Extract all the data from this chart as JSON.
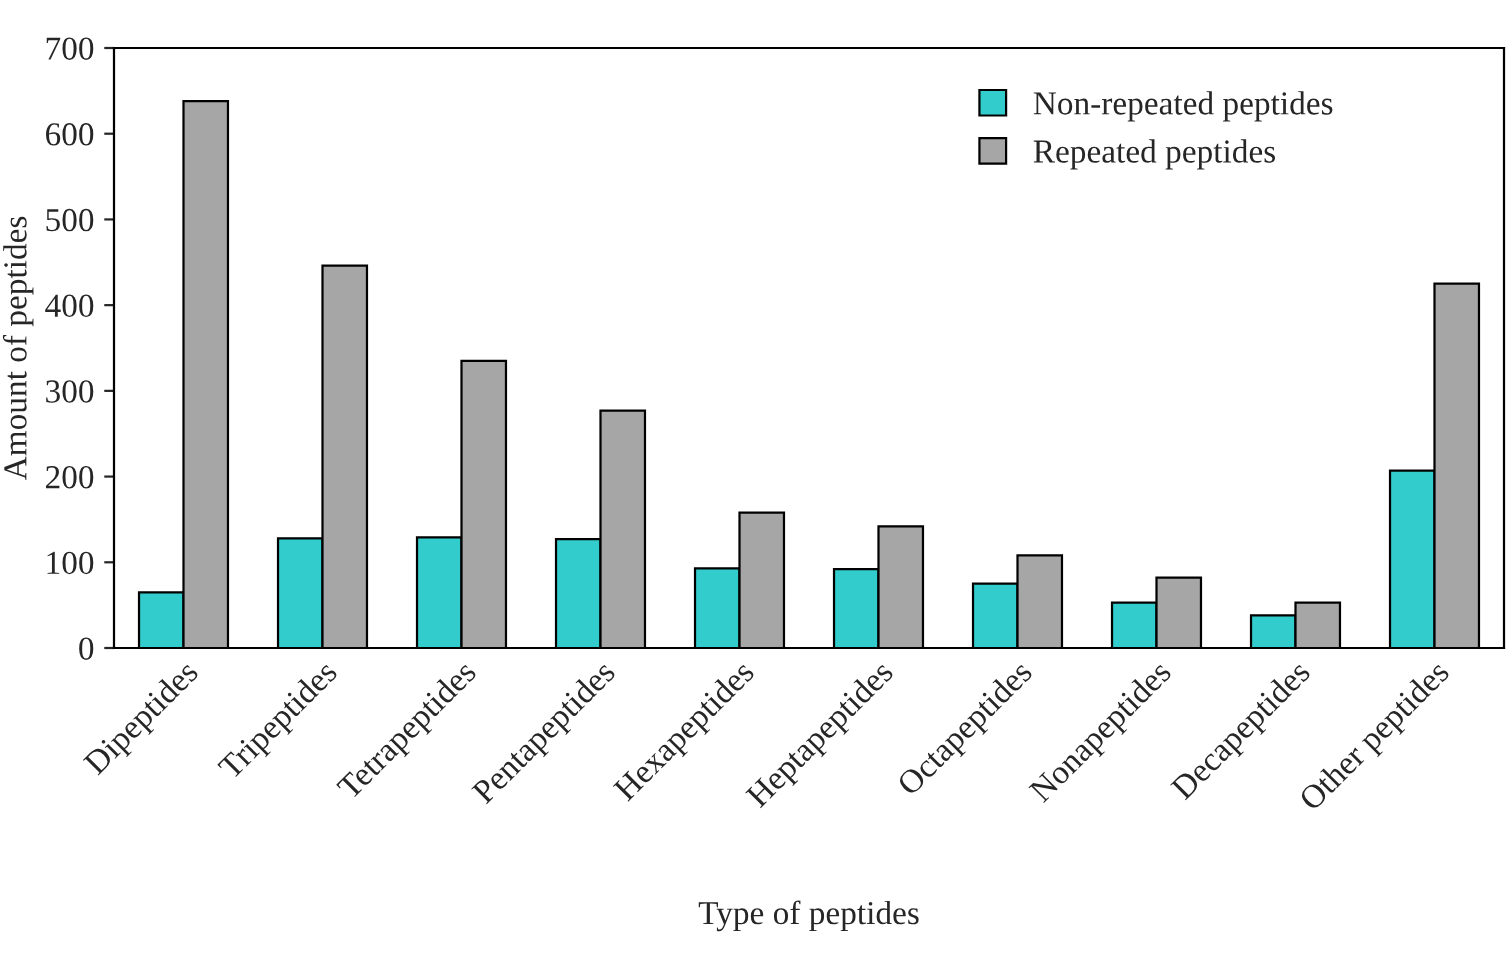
{
  "chart_data": {
    "type": "bar",
    "xlabel": "Type of peptides",
    "ylabel": "Amount of peptides",
    "categories": [
      "Dipeptides",
      "Tripeptides",
      "Tetrapeptides",
      "Pentapeptides",
      "Hexapeptides",
      "Heptapeptides",
      "Octapeptides",
      "Nonapeptides",
      "Decapeptides",
      "Other peptides"
    ],
    "series": [
      {
        "name": "Non-repeated peptides",
        "color": "#33cccc",
        "values": [
          65,
          128,
          129,
          127,
          93,
          92,
          75,
          53,
          38,
          207
        ]
      },
      {
        "name": "Repeated peptides",
        "color": "#a6a6a6",
        "values": [
          638,
          446,
          335,
          277,
          158,
          142,
          108,
          82,
          53,
          425
        ]
      }
    ],
    "ylim": [
      0,
      700
    ],
    "yticks": [
      0,
      100,
      200,
      300,
      400,
      500,
      600,
      700
    ],
    "grid": false,
    "legend": "top right"
  }
}
